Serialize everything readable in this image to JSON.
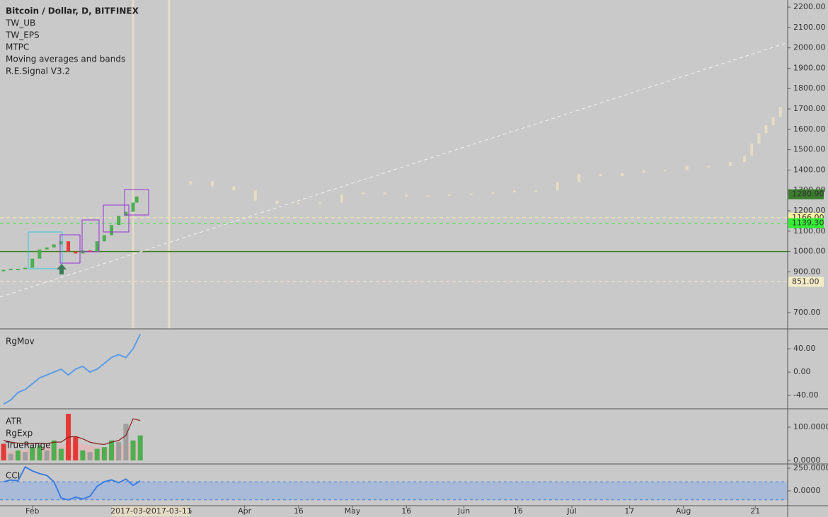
{
  "chart_data": [
    {
      "type": "candlestick",
      "title": "Bitcoin / Dollar, D, BITFINEX",
      "legend": [
        "TW_UB",
        "TW_EPS",
        "MTPC",
        "Moving averages and bands",
        "R.E.Signal V3.2"
      ],
      "x": [
        "2017-01-24",
        "2017-01-26",
        "2017-01-28",
        "2017-01-30",
        "2017-02-01",
        "2017-02-03",
        "2017-02-05",
        "2017-02-07",
        "2017-02-09",
        "2017-02-11",
        "2017-02-13",
        "2017-02-15",
        "2017-02-17",
        "2017-02-19",
        "2017-02-21",
        "2017-02-23",
        "2017-02-25",
        "2017-02-27",
        "2017-03-01",
        "2017-03-02"
      ],
      "values": [
        910,
        915,
        915,
        920,
        965,
        1010,
        1020,
        1035,
        1050,
        1000,
        990,
        1005,
        1000,
        1050,
        1080,
        1130,
        1175,
        1195,
        1240,
        1270
      ],
      "up_color": "#4caf50",
      "down_color": "#e53935",
      "projection": {
        "x": [
          "2017-03-11",
          "2017-03-17",
          "2017-03-23",
          "2017-03-29",
          "2017-04-04",
          "2017-04-10",
          "2017-04-16",
          "2017-04-22",
          "2017-04-28",
          "2017-05-04",
          "2017-05-10",
          "2017-05-16",
          "2017-05-22",
          "2017-05-28",
          "2017-06-03",
          "2017-06-09",
          "2017-06-15",
          "2017-06-21",
          "2017-06-27",
          "2017-07-03",
          "2017-07-09",
          "2017-07-15",
          "2017-07-21",
          "2017-07-27",
          "2017-08-02",
          "2017-08-08",
          "2017-08-14",
          "2017-08-18",
          "2017-08-20",
          "2017-08-22",
          "2017-08-24",
          "2017-08-26",
          "2017-08-28"
        ],
        "values": [
          1330,
          1345,
          1320,
          1300,
          1250,
          1235,
          1240,
          1240,
          1280,
          1290,
          1280,
          1270,
          1275,
          1280,
          1285,
          1290,
          1300,
          1300,
          1340,
          1380,
          1370,
          1385,
          1400,
          1400,
          1420,
          1420,
          1440,
          1470,
          1530,
          1580,
          1620,
          1660,
          1710
        ],
        "color": "#e6dcc3"
      },
      "trendline": {
        "x": [
          "2017-01-23",
          "2017-08-30"
        ],
        "values": [
          776,
          2026
        ],
        "color": "#f2f2f2"
      },
      "support": {
        "value": 1000,
        "color": "#3f7d20"
      },
      "levels": [
        {
          "value": 1166,
          "label": "1166.00",
          "color": "#f3f0a0"
        },
        {
          "value": 1139.3,
          "label": "1139.30",
          "color": "#33ee33"
        },
        {
          "value": 851,
          "label": "851.00",
          "color": "#f3ecc8"
        }
      ],
      "last": {
        "value": 1280.9,
        "label": "1280.90",
        "color": "#3a7d2c"
      },
      "highlights": [
        {
          "value": "2017-03-01",
          "label": "2017-03-01"
        },
        {
          "value": "2017-03-11",
          "label": "2017-03-11"
        }
      ],
      "xlim": [
        "2017-01-23",
        "2017-08-30"
      ],
      "xticks": [
        {
          "value": "2017-02-01",
          "label": "Feb"
        },
        {
          "value": "2017-03-16",
          "label": "16"
        },
        {
          "value": "2017-04-01",
          "label": "Apr"
        },
        {
          "value": "2017-04-16",
          "label": "16"
        },
        {
          "value": "2017-05-01",
          "label": "May"
        },
        {
          "value": "2017-05-16",
          "label": "16"
        },
        {
          "value": "2017-06-01",
          "label": "Jun"
        },
        {
          "value": "2017-06-16",
          "label": "16"
        },
        {
          "value": "2017-07-01",
          "label": "Jul"
        },
        {
          "value": "2017-07-17",
          "label": "17"
        },
        {
          "value": "2017-08-01",
          "label": "Aug"
        },
        {
          "value": "2017-08-21",
          "label": "21"
        }
      ],
      "ylim": [
        620,
        2235
      ],
      "yticks": [
        {
          "value": 700,
          "label": "700.00"
        },
        {
          "value": 900,
          "label": "900.00"
        },
        {
          "value": 1000,
          "label": "1000.00"
        },
        {
          "value": 1100,
          "label": "1100.00"
        },
        {
          "value": 1200,
          "label": "1200.00"
        },
        {
          "value": 1300,
          "label": "1300.00"
        },
        {
          "value": 1400,
          "label": "1400.00"
        },
        {
          "value": 1500,
          "label": "1500.00"
        },
        {
          "value": 1600,
          "label": "1600.00"
        },
        {
          "value": 1700,
          "label": "1700.00"
        },
        {
          "value": 1800,
          "label": "1800.00"
        },
        {
          "value": 1900,
          "label": "1900.00"
        },
        {
          "value": 2000,
          "label": "2000.00"
        },
        {
          "value": 2100,
          "label": "2100.00"
        },
        {
          "value": 2200,
          "label": "2200.00"
        }
      ]
    },
    {
      "type": "line",
      "title": "RgMov",
      "color": "#5b9be8",
      "x": [
        "2017-01-24",
        "2017-01-26",
        "2017-01-28",
        "2017-01-30",
        "2017-02-01",
        "2017-02-03",
        "2017-02-05",
        "2017-02-07",
        "2017-02-09",
        "2017-02-11",
        "2017-02-13",
        "2017-02-15",
        "2017-02-17",
        "2017-02-19",
        "2017-02-21",
        "2017-02-23",
        "2017-02-25",
        "2017-02-27",
        "2017-03-01",
        "2017-03-03"
      ],
      "values": [
        -55,
        -48,
        -35,
        -30,
        -20,
        -10,
        -5,
        0,
        5,
        -5,
        5,
        10,
        0,
        5,
        15,
        25,
        30,
        25,
        40,
        65
      ],
      "ylim": [
        -63,
        73
      ],
      "yticks": [
        {
          "value": 40,
          "label": "40.00"
        },
        {
          "value": 0,
          "label": "0.00"
        },
        {
          "value": -40,
          "label": "-40.00"
        }
      ]
    },
    {
      "type": "bar",
      "x": [
        "2017-01-24",
        "2017-01-26",
        "2017-01-28",
        "2017-01-30",
        "2017-02-01",
        "2017-02-03",
        "2017-02-05",
        "2017-02-07",
        "2017-02-09",
        "2017-02-11",
        "2017-02-13",
        "2017-02-15",
        "2017-02-17",
        "2017-02-19",
        "2017-02-21",
        "2017-02-23",
        "2017-02-25",
        "2017-02-27",
        "2017-03-01",
        "2017-03-03"
      ],
      "series": [
        {
          "name": "ATR",
          "style": "line",
          "color": "#8b1a1a",
          "values": [
            60,
            55,
            52,
            50,
            50,
            52,
            50,
            55,
            55,
            70,
            72,
            65,
            55,
            50,
            48,
            55,
            60,
            75,
            125,
            120
          ]
        },
        {
          "name": "RgExp",
          "style": "area",
          "color": "#e8b4b4",
          "values": [
            30,
            28,
            30,
            32,
            35,
            38,
            40,
            42,
            45,
            50,
            55,
            50,
            45,
            40,
            38,
            40,
            45,
            50,
            55,
            60
          ]
        },
        {
          "name": "TrueRange",
          "style": "bar",
          "values": [
            50,
            20,
            30,
            25,
            40,
            45,
            30,
            60,
            35,
            140,
            70,
            30,
            25,
            35,
            40,
            60,
            55,
            110,
            60,
            75
          ],
          "colors": [
            "#e53935",
            "#9e9e9e",
            "#4caf50",
            "#9e9e9e",
            "#4caf50",
            "#4caf50",
            "#9e9e9e",
            "#4caf50",
            "#4caf50",
            "#e53935",
            "#e53935",
            "#4caf50",
            "#9e9e9e",
            "#4caf50",
            "#4caf50",
            "#4caf50",
            "#9e9e9e",
            "#9e9e9e",
            "#4caf50",
            "#4caf50"
          ]
        }
      ],
      "ylim": [
        -10.6,
        153
      ],
      "yticks": [
        {
          "value": 100,
          "label": "100.0000"
        },
        {
          "value": 0,
          "label": "0.0000"
        }
      ]
    },
    {
      "type": "line",
      "title": "CCI",
      "color": "#3d7ee0",
      "x": [
        "2017-01-24",
        "2017-01-26",
        "2017-01-28",
        "2017-01-30",
        "2017-02-01",
        "2017-02-03",
        "2017-02-05",
        "2017-02-07",
        "2017-02-09",
        "2017-02-11",
        "2017-02-13",
        "2017-02-15",
        "2017-02-17",
        "2017-02-19",
        "2017-02-21",
        "2017-02-23",
        "2017-02-25",
        "2017-02-27",
        "2017-03-01",
        "2017-03-03"
      ],
      "values": [
        100,
        120,
        110,
        265,
        220,
        190,
        170,
        100,
        -80,
        -100,
        -70,
        -90,
        -60,
        50,
        100,
        120,
        90,
        130,
        60,
        110
      ],
      "band": [
        -100,
        100
      ],
      "band_color": "#a9bad8",
      "ylim": [
        -164,
        289
      ],
      "yticks": [
        {
          "value": 250,
          "label": "250.0000"
        },
        {
          "value": 0,
          "label": "0.0000"
        }
      ]
    }
  ]
}
